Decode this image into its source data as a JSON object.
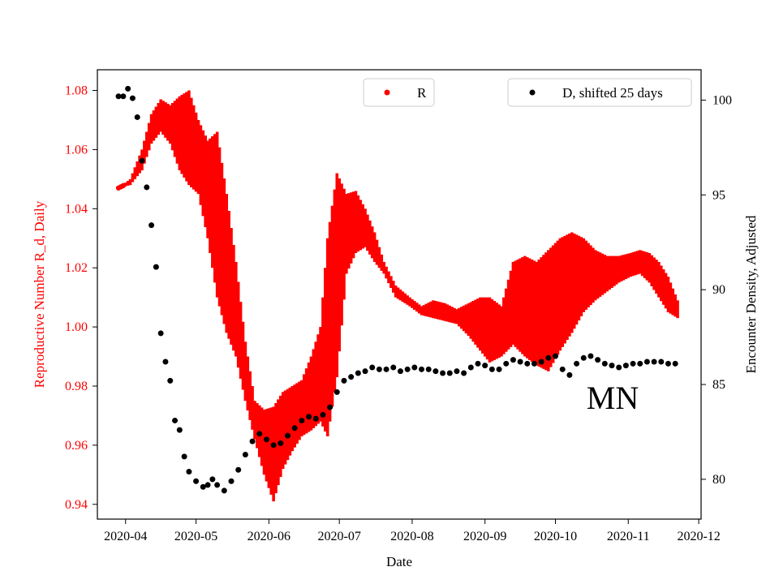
{
  "chart_data": {
    "type": "scatter",
    "xlabel": "Date",
    "ylabel_left": "Reproductive Number R_d, Daily",
    "ylabel_right": "Encounter Density, Adjusted",
    "x_range": [
      "2020-03-20",
      "2020-12-02"
    ],
    "y_left_range": [
      0.935,
      1.087
    ],
    "y_right_range": [
      77.9,
      101.6
    ],
    "x_ticks": [
      "2020-04-01",
      "2020-05-01",
      "2020-06-01",
      "2020-07-01",
      "2020-08-01",
      "2020-09-01",
      "2020-10-01",
      "2020-11-01",
      "2020-12-01"
    ],
    "x_tick_labels": [
      "2020-04",
      "2020-05",
      "2020-06",
      "2020-07",
      "2020-08",
      "2020-09",
      "2020-10",
      "2020-11",
      "2020-12"
    ],
    "y_left_ticks": [
      0.94,
      0.96,
      0.98,
      1.0,
      1.02,
      1.04,
      1.06,
      1.08
    ],
    "y_left_tick_labels": [
      "0.94",
      "0.96",
      "0.98",
      "1.00",
      "1.02",
      "1.04",
      "1.06",
      "1.08"
    ],
    "y_right_ticks": [
      80,
      85,
      90,
      95,
      100
    ],
    "y_right_tick_labels": [
      "80",
      "85",
      "90",
      "95",
      "100"
    ],
    "annotation": "MN",
    "colors": {
      "r_series": "#ff0000",
      "d_series": "#000000",
      "left_axis": "#ff0000",
      "right_axis": "#000000"
    },
    "legend_placement": "top-center (R), top-right (D)",
    "series": [
      {
        "name": "R",
        "axis": "left",
        "style": "band",
        "x": [
          "2020-03-29",
          "2020-04-03",
          "2020-04-08",
          "2020-04-12",
          "2020-04-16",
          "2020-04-20",
          "2020-04-24",
          "2020-04-28",
          "2020-05-02",
          "2020-05-06",
          "2020-05-10",
          "2020-05-14",
          "2020-05-18",
          "2020-05-22",
          "2020-05-26",
          "2020-05-30",
          "2020-06-03",
          "2020-06-07",
          "2020-06-11",
          "2020-06-15",
          "2020-06-19",
          "2020-06-23",
          "2020-06-26",
          "2020-06-30",
          "2020-07-04",
          "2020-07-08",
          "2020-07-12",
          "2020-07-16",
          "2020-07-20",
          "2020-07-25",
          "2020-07-31",
          "2020-08-05",
          "2020-08-10",
          "2020-08-15",
          "2020-08-20",
          "2020-08-25",
          "2020-08-30",
          "2020-09-03",
          "2020-09-08",
          "2020-09-13",
          "2020-09-18",
          "2020-09-23",
          "2020-09-28",
          "2020-10-03",
          "2020-10-08",
          "2020-10-13",
          "2020-10-18",
          "2020-10-23",
          "2020-10-28",
          "2020-11-02",
          "2020-11-06",
          "2020-11-10",
          "2020-11-14",
          "2020-11-18",
          "2020-11-22"
        ],
        "low": [
          1.047,
          1.048,
          1.053,
          1.062,
          1.066,
          1.062,
          1.053,
          1.048,
          1.045,
          1.03,
          1.01,
          0.998,
          0.99,
          0.975,
          0.962,
          0.95,
          0.941,
          0.952,
          0.958,
          0.963,
          0.965,
          0.968,
          0.963,
          0.983,
          1.018,
          1.025,
          1.027,
          1.022,
          1.018,
          1.01,
          1.007,
          1.004,
          1.003,
          1.002,
          1.001,
          0.997,
          0.992,
          0.988,
          0.99,
          0.994,
          0.99,
          0.987,
          0.985,
          0.992,
          0.998,
          1.005,
          1.009,
          1.012,
          1.015,
          1.017,
          1.018,
          1.015,
          1.01,
          1.005,
          1.003
        ],
        "high": [
          1.047,
          1.05,
          1.06,
          1.072,
          1.077,
          1.075,
          1.078,
          1.08,
          1.07,
          1.063,
          1.066,
          1.045,
          1.022,
          0.995,
          0.975,
          0.972,
          0.973,
          0.978,
          0.98,
          0.982,
          0.99,
          1.0,
          1.03,
          1.052,
          1.045,
          1.046,
          1.04,
          1.032,
          1.022,
          1.014,
          1.01,
          1.007,
          1.009,
          1.008,
          1.006,
          1.008,
          1.01,
          1.01,
          1.007,
          1.022,
          1.024,
          1.022,
          1.026,
          1.03,
          1.032,
          1.03,
          1.026,
          1.024,
          1.024,
          1.025,
          1.026,
          1.025,
          1.022,
          1.017,
          1.009
        ]
      },
      {
        "name": "D, shifted 25 days",
        "axis": "right",
        "style": "dots",
        "x": [
          "2020-03-29",
          "2020-03-31",
          "2020-04-02",
          "2020-04-04",
          "2020-04-06",
          "2020-04-08",
          "2020-04-10",
          "2020-04-12",
          "2020-04-14",
          "2020-04-16",
          "2020-04-18",
          "2020-04-20",
          "2020-04-22",
          "2020-04-24",
          "2020-04-26",
          "2020-04-28",
          "2020-05-01",
          "2020-05-04",
          "2020-05-06",
          "2020-05-08",
          "2020-05-10",
          "2020-05-13",
          "2020-05-16",
          "2020-05-19",
          "2020-05-22",
          "2020-05-25",
          "2020-05-28",
          "2020-05-31",
          "2020-06-03",
          "2020-06-06",
          "2020-06-09",
          "2020-06-12",
          "2020-06-15",
          "2020-06-18",
          "2020-06-21",
          "2020-06-24",
          "2020-06-27",
          "2020-06-30",
          "2020-07-03",
          "2020-07-06",
          "2020-07-09",
          "2020-07-12",
          "2020-07-15",
          "2020-07-18",
          "2020-07-21",
          "2020-07-24",
          "2020-07-27",
          "2020-07-30",
          "2020-08-02",
          "2020-08-05",
          "2020-08-08",
          "2020-08-11",
          "2020-08-14",
          "2020-08-17",
          "2020-08-20",
          "2020-08-23",
          "2020-08-26",
          "2020-08-29",
          "2020-09-01",
          "2020-09-04",
          "2020-09-07",
          "2020-09-10",
          "2020-09-13",
          "2020-09-16",
          "2020-09-19",
          "2020-09-22",
          "2020-09-25",
          "2020-09-28",
          "2020-10-01",
          "2020-10-04",
          "2020-10-07",
          "2020-10-10",
          "2020-10-13",
          "2020-10-16",
          "2020-10-19",
          "2020-10-22",
          "2020-10-25",
          "2020-10-28",
          "2020-10-31",
          "2020-11-03",
          "2020-11-06",
          "2020-11-09",
          "2020-11-12",
          "2020-11-15",
          "2020-11-18",
          "2020-11-21"
        ],
        "y": [
          100.2,
          100.2,
          100.6,
          100.1,
          99.1,
          96.8,
          95.4,
          93.4,
          91.2,
          87.7,
          86.2,
          85.2,
          83.1,
          82.6,
          81.2,
          80.4,
          79.9,
          79.6,
          79.7,
          80.0,
          79.7,
          79.4,
          79.9,
          80.5,
          81.3,
          82.0,
          82.4,
          82.1,
          81.8,
          81.9,
          82.3,
          82.7,
          83.1,
          83.3,
          83.2,
          83.4,
          83.8,
          84.6,
          85.2,
          85.4,
          85.6,
          85.7,
          85.9,
          85.8,
          85.8,
          85.9,
          85.7,
          85.8,
          85.9,
          85.8,
          85.8,
          85.7,
          85.6,
          85.6,
          85.7,
          85.6,
          85.9,
          86.1,
          86.0,
          85.8,
          85.8,
          86.1,
          86.3,
          86.2,
          86.1,
          86.1,
          86.2,
          86.4,
          86.5,
          85.8,
          85.5,
          86.1,
          86.4,
          86.5,
          86.3,
          86.1,
          86.0,
          85.9,
          86.0,
          86.1,
          86.1,
          86.2,
          86.2,
          86.2,
          86.1,
          86.1
        ]
      }
    ]
  }
}
